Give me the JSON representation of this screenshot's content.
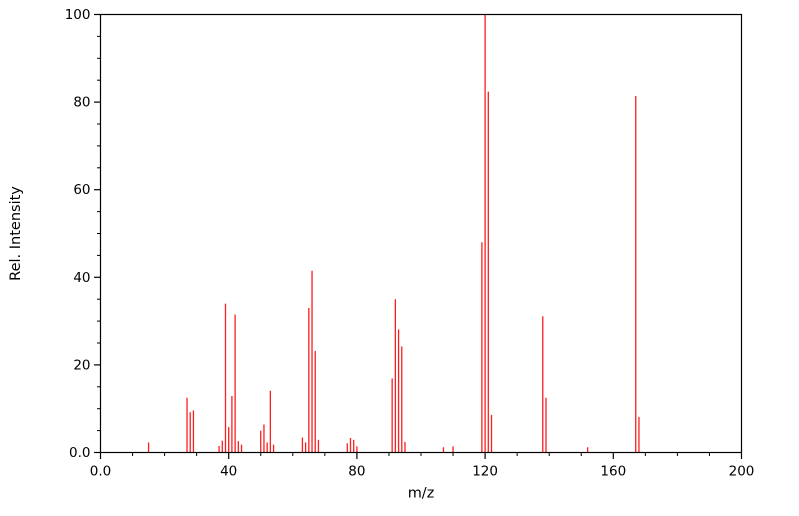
{
  "chart_data": {
    "type": "bar",
    "subtype": "mass-spectrum-stick-plot",
    "title": "",
    "xlabel": "m/z",
    "ylabel": "Rel. Intensity",
    "xlim": [
      0,
      200
    ],
    "ylim": [
      0,
      100
    ],
    "grid": false,
    "legend": false,
    "series_color": "#fb1f1f",
    "frame_color": "#000000",
    "background_color": "#ffffff",
    "x_ticks": {
      "values": [
        0,
        40,
        80,
        120,
        160,
        200
      ],
      "labels": [
        "0.0",
        "40",
        "80",
        "120",
        "160",
        "200"
      ],
      "minor_step": 10
    },
    "y_ticks": {
      "values": [
        0,
        20,
        40,
        60,
        80,
        100
      ],
      "labels": [
        "0.0",
        "20",
        "40",
        "60",
        "80",
        "100"
      ],
      "minor_step": 5
    },
    "peaks": [
      {
        "mz": 15,
        "rel_intensity": 2.3
      },
      {
        "mz": 27,
        "rel_intensity": 12.5
      },
      {
        "mz": 28,
        "rel_intensity": 9.2
      },
      {
        "mz": 29,
        "rel_intensity": 9.6
      },
      {
        "mz": 37,
        "rel_intensity": 1.5
      },
      {
        "mz": 38,
        "rel_intensity": 2.7
      },
      {
        "mz": 39,
        "rel_intensity": 34.0
      },
      {
        "mz": 40,
        "rel_intensity": 5.8
      },
      {
        "mz": 41,
        "rel_intensity": 12.9
      },
      {
        "mz": 42,
        "rel_intensity": 31.5
      },
      {
        "mz": 43,
        "rel_intensity": 2.6
      },
      {
        "mz": 44,
        "rel_intensity": 1.8
      },
      {
        "mz": 50,
        "rel_intensity": 5.0
      },
      {
        "mz": 51,
        "rel_intensity": 6.4
      },
      {
        "mz": 52,
        "rel_intensity": 2.3
      },
      {
        "mz": 53,
        "rel_intensity": 14.1
      },
      {
        "mz": 54,
        "rel_intensity": 1.8
      },
      {
        "mz": 63,
        "rel_intensity": 3.4
      },
      {
        "mz": 64,
        "rel_intensity": 2.3
      },
      {
        "mz": 65,
        "rel_intensity": 33.0
      },
      {
        "mz": 66,
        "rel_intensity": 41.5
      },
      {
        "mz": 67,
        "rel_intensity": 23.2
      },
      {
        "mz": 68,
        "rel_intensity": 2.9
      },
      {
        "mz": 77,
        "rel_intensity": 2.1
      },
      {
        "mz": 78,
        "rel_intensity": 3.3
      },
      {
        "mz": 79,
        "rel_intensity": 2.9
      },
      {
        "mz": 80,
        "rel_intensity": 1.4
      },
      {
        "mz": 91,
        "rel_intensity": 16.9
      },
      {
        "mz": 92,
        "rel_intensity": 35.0
      },
      {
        "mz": 93,
        "rel_intensity": 28.1
      },
      {
        "mz": 94,
        "rel_intensity": 24.2
      },
      {
        "mz": 95,
        "rel_intensity": 2.4
      },
      {
        "mz": 107,
        "rel_intensity": 1.2
      },
      {
        "mz": 110,
        "rel_intensity": 1.4
      },
      {
        "mz": 119,
        "rel_intensity": 48.0
      },
      {
        "mz": 120,
        "rel_intensity": 100.0
      },
      {
        "mz": 121,
        "rel_intensity": 82.4
      },
      {
        "mz": 122,
        "rel_intensity": 8.6
      },
      {
        "mz": 138,
        "rel_intensity": 31.1
      },
      {
        "mz": 139,
        "rel_intensity": 12.5
      },
      {
        "mz": 152,
        "rel_intensity": 1.2
      },
      {
        "mz": 167,
        "rel_intensity": 81.4
      },
      {
        "mz": 168,
        "rel_intensity": 8.1
      }
    ]
  }
}
